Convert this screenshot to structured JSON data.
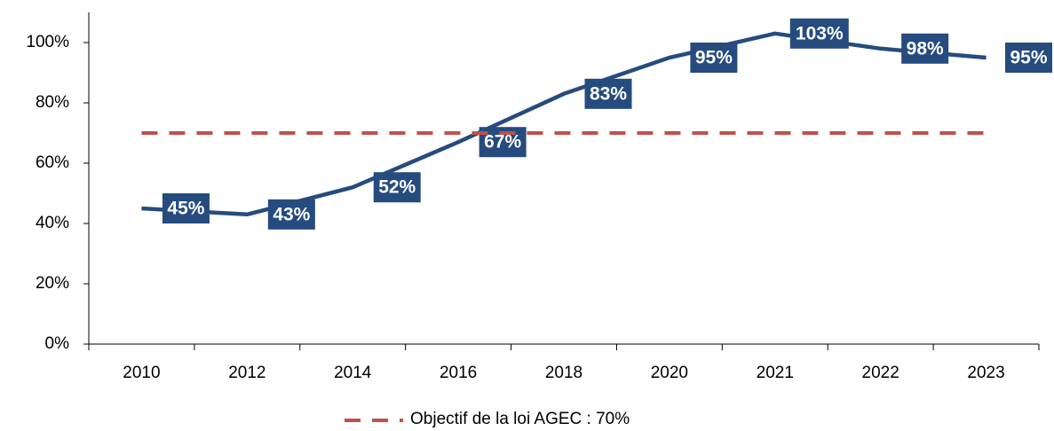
{
  "chart_data": {
    "type": "line",
    "categories": [
      "2010",
      "2012",
      "2014",
      "2016",
      "2018",
      "2020",
      "2021",
      "2022",
      "2023"
    ],
    "series": [
      {
        "color": "#264b7e",
        "values": [
          45,
          43,
          52,
          67,
          83,
          95,
          103,
          98,
          95
        ],
        "value_labels": [
          "45%",
          "43%",
          "52%",
          "67%",
          "83%",
          "95%",
          "103%",
          "98%",
          "95%"
        ]
      },
      {
        "name": "Objectif de la loi AGEC : 70%",
        "color": "#c0504d",
        "dashed": true,
        "values": [
          70,
          70,
          70,
          70,
          70,
          70,
          70,
          70,
          70
        ]
      }
    ],
    "ylim": [
      0,
      110
    ],
    "yticks": [
      {
        "value": 0,
        "label": "0%"
      },
      {
        "value": 20,
        "label": "20%"
      },
      {
        "value": 40,
        "label": "40%"
      },
      {
        "value": 60,
        "label": "60%"
      },
      {
        "value": 80,
        "label": "80%"
      },
      {
        "value": 100,
        "label": "100%"
      }
    ],
    "legend": "bottom"
  }
}
